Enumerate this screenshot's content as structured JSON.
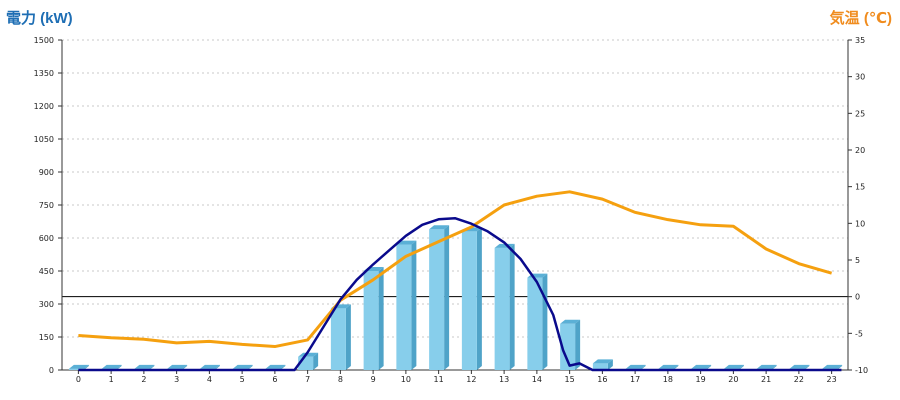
{
  "chart_data": {
    "type": "bar",
    "left_axis_title": "電力 (kW)",
    "right_axis_title": "気温 (℃)",
    "categories": [
      "0",
      "1",
      "2",
      "3",
      "4",
      "5",
      "6",
      "7",
      "8",
      "9",
      "10",
      "11",
      "12",
      "13",
      "14",
      "15",
      "16",
      "17",
      "18",
      "19",
      "20",
      "21",
      "22",
      "23"
    ],
    "y_left_ticks": [
      "0",
      "150",
      "300",
      "450",
      "600",
      "750",
      "900",
      "1050",
      "1200",
      "1350",
      "1500"
    ],
    "y_right_ticks": [
      "-10",
      "-5",
      "0",
      "5",
      "10",
      "15",
      "20",
      "25",
      "30",
      "35"
    ],
    "ylim_left": [
      0,
      1500
    ],
    "ylim_right": [
      -10,
      35
    ],
    "grid": true,
    "colors": {
      "bar": "#87CEEB",
      "bar_side": "#4FA3C8",
      "bar_top": "#5BB0D6",
      "power_line": "#0A0A8C",
      "temperature_line": "#F5A00F",
      "left_title": "#1E6EB4",
      "right_title": "#F08C1E",
      "zero_line": "#000000"
    },
    "bar_values": [
      5,
      5,
      5,
      5,
      5,
      5,
      5,
      60,
      280,
      450,
      570,
      640,
      630,
      555,
      420,
      210,
      30,
      5,
      5,
      5,
      5,
      5,
      5,
      5
    ],
    "power_curve": [
      [
        0,
        0
      ],
      [
        6.6,
        0
      ],
      [
        7.0,
        80
      ],
      [
        7.5,
        200
      ],
      [
        8.0,
        320
      ],
      [
        8.5,
        410
      ],
      [
        9.0,
        480
      ],
      [
        9.5,
        545
      ],
      [
        10.0,
        610
      ],
      [
        10.5,
        660
      ],
      [
        11.0,
        685
      ],
      [
        11.5,
        690
      ],
      [
        12.0,
        665
      ],
      [
        12.5,
        630
      ],
      [
        13.0,
        580
      ],
      [
        13.5,
        505
      ],
      [
        14.0,
        400
      ],
      [
        14.5,
        250
      ],
      [
        14.8,
        90
      ],
      [
        15.0,
        20
      ],
      [
        15.3,
        30
      ],
      [
        15.7,
        0
      ],
      [
        23.3,
        0
      ]
    ],
    "temperature_curve": [
      [
        0,
        -5.3
      ],
      [
        1,
        -5.6
      ],
      [
        2,
        -5.8
      ],
      [
        3,
        -6.3
      ],
      [
        4,
        -6.1
      ],
      [
        5,
        -6.5
      ],
      [
        6,
        -6.8
      ],
      [
        7,
        -5.9
      ],
      [
        8,
        -0.5
      ],
      [
        9,
        2.3
      ],
      [
        10,
        5.5
      ],
      [
        11,
        7.5
      ],
      [
        12,
        9.5
      ],
      [
        13,
        12.5
      ],
      [
        14,
        13.7
      ],
      [
        15,
        14.3
      ],
      [
        16,
        13.3
      ],
      [
        17,
        11.5
      ],
      [
        18,
        10.5
      ],
      [
        19,
        9.8
      ],
      [
        20,
        9.6
      ],
      [
        21,
        6.5
      ],
      [
        22,
        4.5
      ],
      [
        23,
        3.2
      ]
    ]
  }
}
